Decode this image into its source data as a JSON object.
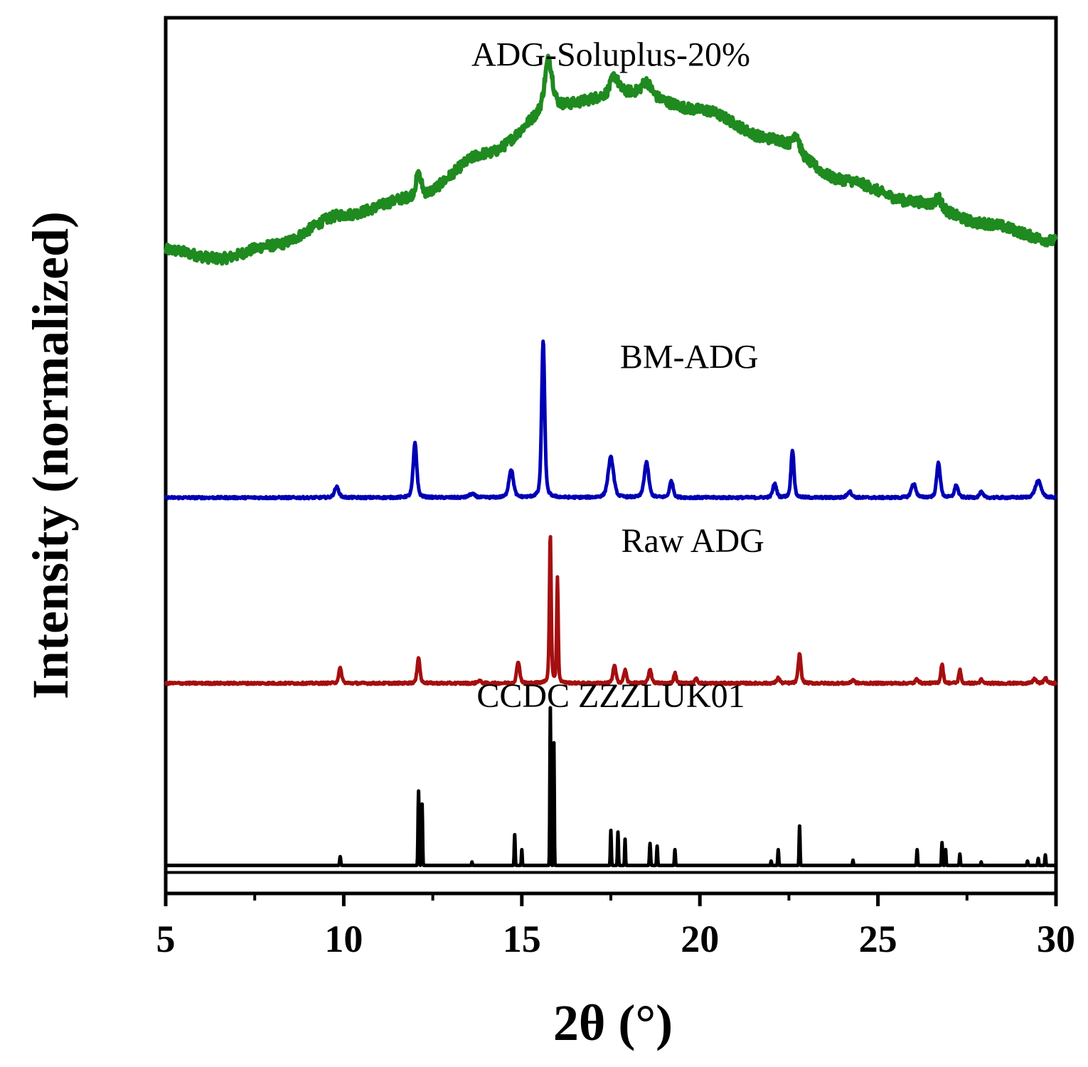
{
  "chart_data": {
    "type": "line",
    "title": "",
    "xlabel": "2θ (°)",
    "ylabel": "Intensity (normalized)",
    "xlim": [
      5,
      30
    ],
    "ylim": [
      0,
      1
    ],
    "x_ticks": [
      5,
      10,
      15,
      20,
      25,
      30
    ],
    "x_tick_labels": [
      "5",
      "10",
      "15",
      "20",
      "25",
      "30"
    ],
    "x_minor_ticks": [
      7.5,
      12.5,
      17.5,
      22.5,
      27.5
    ],
    "y_ticks_shown": false,
    "series": [
      {
        "name": "ADG-Soluplus-20%",
        "color": "#1f8a1f",
        "style": "amorphous",
        "offset": 0.73,
        "label_x": 17.5,
        "label_y": 0.945,
        "baseline": [
          [
            5,
            0.735
          ],
          [
            6.5,
            0.725
          ],
          [
            8,
            0.74
          ],
          [
            10,
            0.775
          ],
          [
            12,
            0.795
          ],
          [
            14,
            0.845
          ],
          [
            16,
            0.9
          ],
          [
            18,
            0.915
          ],
          [
            20,
            0.895
          ],
          [
            22,
            0.862
          ],
          [
            24,
            0.815
          ],
          [
            26,
            0.79
          ],
          [
            28,
            0.765
          ],
          [
            30,
            0.745
          ]
        ],
        "peaks": [
          [
            12.1,
            0.025,
            0.2
          ],
          [
            15.75,
            0.055,
            0.25
          ],
          [
            17.6,
            0.02,
            0.25
          ],
          [
            18.5,
            0.015,
            0.3
          ],
          [
            22.7,
            0.02,
            0.2
          ],
          [
            26.7,
            0.012,
            0.2
          ]
        ]
      },
      {
        "name": "BM-ADG",
        "color": "#0000b4",
        "style": "crystalline",
        "offset": 0.452,
        "label_x": 19.7,
        "label_y": 0.6,
        "baseline": [],
        "peaks": [
          [
            9.8,
            0.012,
            0.15
          ],
          [
            12.0,
            0.062,
            0.12
          ],
          [
            13.6,
            0.004,
            0.2
          ],
          [
            14.7,
            0.032,
            0.15
          ],
          [
            15.6,
            0.18,
            0.1
          ],
          [
            17.5,
            0.046,
            0.18
          ],
          [
            18.5,
            0.04,
            0.15
          ],
          [
            19.2,
            0.019,
            0.12
          ],
          [
            22.1,
            0.016,
            0.12
          ],
          [
            22.6,
            0.055,
            0.1
          ],
          [
            24.2,
            0.007,
            0.15
          ],
          [
            26.0,
            0.016,
            0.15
          ],
          [
            26.7,
            0.04,
            0.12
          ],
          [
            27.2,
            0.014,
            0.12
          ],
          [
            27.9,
            0.006,
            0.12
          ],
          [
            29.5,
            0.019,
            0.2
          ]
        ]
      },
      {
        "name": "Raw ADG",
        "color": "#a50f0f",
        "style": "crystalline",
        "offset": 0.24,
        "label_x": 19.8,
        "label_y": 0.39,
        "baseline": [],
        "peaks": [
          [
            9.9,
            0.017,
            0.1
          ],
          [
            12.1,
            0.03,
            0.09
          ],
          [
            13.8,
            0.003,
            0.12
          ],
          [
            14.9,
            0.025,
            0.1
          ],
          [
            15.8,
            0.17,
            0.06
          ],
          [
            16.0,
            0.12,
            0.05
          ],
          [
            17.6,
            0.02,
            0.1
          ],
          [
            17.9,
            0.015,
            0.09
          ],
          [
            18.6,
            0.016,
            0.1
          ],
          [
            19.3,
            0.012,
            0.08
          ],
          [
            19.9,
            0.006,
            0.08
          ],
          [
            22.2,
            0.006,
            0.1
          ],
          [
            22.8,
            0.034,
            0.09
          ],
          [
            24.3,
            0.004,
            0.1
          ],
          [
            26.1,
            0.005,
            0.1
          ],
          [
            26.8,
            0.022,
            0.08
          ],
          [
            27.3,
            0.016,
            0.07
          ],
          [
            27.9,
            0.004,
            0.08
          ],
          [
            29.4,
            0.005,
            0.1
          ],
          [
            29.7,
            0.006,
            0.1
          ]
        ]
      },
      {
        "name": "CCDC ZZZLUK01",
        "color": "#000000",
        "style": "simulated",
        "offset": 0.032,
        "label_x": 17.5,
        "label_y": 0.213,
        "baseline": [],
        "peaks": [
          [
            9.9,
            0.01,
            0.04
          ],
          [
            12.1,
            0.085,
            0.04
          ],
          [
            12.2,
            0.07,
            0.035
          ],
          [
            13.6,
            0.004,
            0.03
          ],
          [
            14.8,
            0.035,
            0.035
          ],
          [
            15.0,
            0.018,
            0.03
          ],
          [
            15.8,
            0.18,
            0.035
          ],
          [
            15.9,
            0.14,
            0.03
          ],
          [
            17.5,
            0.04,
            0.035
          ],
          [
            17.7,
            0.038,
            0.035
          ],
          [
            17.9,
            0.03,
            0.03
          ],
          [
            18.6,
            0.025,
            0.04
          ],
          [
            18.8,
            0.022,
            0.035
          ],
          [
            19.3,
            0.018,
            0.035
          ],
          [
            22.0,
            0.005,
            0.03
          ],
          [
            22.2,
            0.018,
            0.035
          ],
          [
            22.8,
            0.045,
            0.035
          ],
          [
            24.3,
            0.006,
            0.03
          ],
          [
            26.1,
            0.018,
            0.035
          ],
          [
            26.8,
            0.026,
            0.035
          ],
          [
            26.9,
            0.018,
            0.03
          ],
          [
            27.3,
            0.013,
            0.035
          ],
          [
            27.9,
            0.004,
            0.03
          ],
          [
            29.2,
            0.005,
            0.035
          ],
          [
            29.5,
            0.008,
            0.035
          ],
          [
            29.7,
            0.012,
            0.035
          ]
        ]
      }
    ]
  }
}
